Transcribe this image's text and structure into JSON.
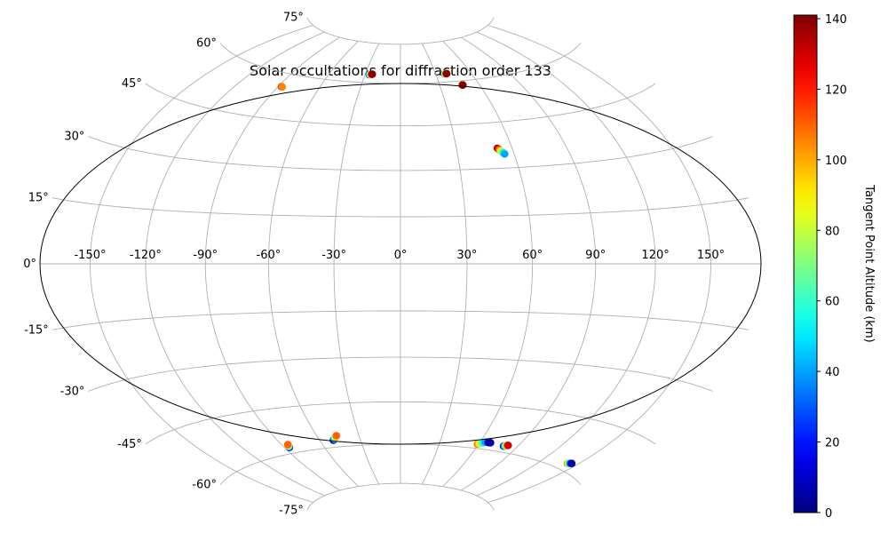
{
  "chart_data": {
    "type": "scatter",
    "projection": "hammer",
    "title": "Solar occultations for diffraction order 133",
    "lon_ticks": [
      -150,
      -120,
      -90,
      -60,
      -30,
      0,
      30,
      60,
      90,
      120,
      150
    ],
    "lon_tick_labels": [
      "-150°",
      "-120°",
      "-90°",
      "-60°",
      "-30°",
      "0°",
      "30°",
      "60°",
      "90°",
      "120°",
      "150°"
    ],
    "lat_ticks": [
      75,
      60,
      45,
      30,
      15,
      0,
      -15,
      -30,
      -45,
      -60,
      -75
    ],
    "lat_tick_labels": [
      "75°",
      "60°",
      "45°",
      "30°",
      "15°",
      "0°",
      "-15°",
      "-30°",
      "-45°",
      "-60°",
      "-75°"
    ],
    "grid": true,
    "colorbar": {
      "label": "Tangent Point Altitude (km)",
      "colormap": "jet",
      "range": [
        0,
        141
      ],
      "ticks": [
        0,
        20,
        40,
        60,
        80,
        100,
        120,
        140
      ],
      "tick_labels": [
        "0",
        "20",
        "40",
        "60",
        "80",
        "100",
        "120",
        "140"
      ]
    },
    "occultations": [
      {
        "lon_start": -87.5,
        "lat_start": 55.5,
        "lon_end": -87.0,
        "lat_end": 55.5,
        "alt_start": 140,
        "alt_end": 105
      },
      {
        "lon_start": -26.5,
        "lat_start": 63.0,
        "lon_end": -24.0,
        "lat_end": 63.2,
        "alt_start": 20,
        "alt_end": 140
      },
      {
        "lon_start": 37.5,
        "lat_start": 63.0,
        "lon_end": 39.5,
        "lat_end": 63.0,
        "alt_start": 40,
        "alt_end": 140
      },
      {
        "lon_start": 47.0,
        "lat_start": 58.5,
        "lon_end": 47.5,
        "lat_end": 58.5,
        "alt_start": 120,
        "alt_end": 140
      },
      {
        "lon_start": 52.0,
        "lat_start": 36.5,
        "lon_end": 55.0,
        "lat_end": 34.5,
        "alt_start": 140,
        "alt_end": 40
      },
      {
        "lon_start": -86.5,
        "lat_start": -58.0,
        "lon_end": -85.5,
        "lat_end": -57.0,
        "alt_start": 5,
        "alt_end": 110
      },
      {
        "lon_start": -50.0,
        "lat_start": -57.5,
        "lon_end": -46.0,
        "lat_end": -56.0,
        "alt_start": 5,
        "alt_end": 110
      },
      {
        "lon_start": 59.0,
        "lat_start": -58.5,
        "lon_end": 64.0,
        "lat_end": -57.5,
        "alt_start": 110,
        "alt_end": 40
      },
      {
        "lon_start": 66.0,
        "lat_start": -57.5,
        "lon_end": 68.0,
        "lat_end": -57.5,
        "alt_start": 10,
        "alt_end": 5
      },
      {
        "lon_start": 79.5,
        "lat_start": -58.0,
        "lon_end": 82.5,
        "lat_end": -57.5,
        "alt_start": 5,
        "alt_end": 130
      },
      {
        "lon_start": 142.0,
        "lat_start": -58.0,
        "lon_end": 145.0,
        "lat_end": -57.5,
        "alt_start": 110,
        "alt_end": 5
      }
    ]
  }
}
